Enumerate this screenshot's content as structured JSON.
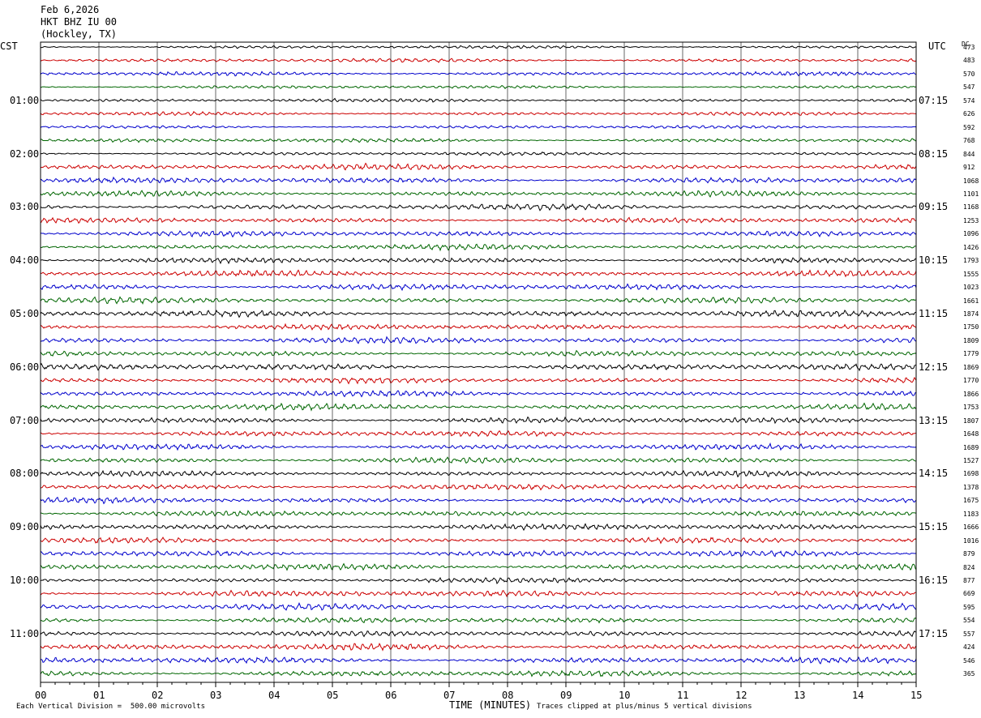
{
  "header": {
    "date": "Feb 6,2026",
    "station": "HKT BHZ IU 00",
    "location": "(Hockley, TX)"
  },
  "left_tz": "CST",
  "right_tz": "UTC",
  "dc_label": "DC",
  "footer": {
    "division": "Each Vertical Division =  500.00 microvolts",
    "xlabel": "TIME (MINUTES)",
    "clip": "Traces clipped at plus/minus 5 vertical divisions"
  },
  "chart_data": {
    "type": "line",
    "title": "",
    "xlabel": "TIME (MINUTES)",
    "ylabel": "",
    "xlim": [
      0,
      15
    ],
    "x_ticks": [
      "00",
      "01",
      "02",
      "03",
      "04",
      "05",
      "06",
      "07",
      "08",
      "09",
      "10",
      "11",
      "12",
      "13",
      "14",
      "15"
    ],
    "left_hour_labels": [
      "01:00",
      "02:00",
      "03:00",
      "04:00",
      "05:00",
      "06:00",
      "07:00",
      "08:00",
      "09:00",
      "10:00",
      "11:00"
    ],
    "right_hour_labels": [
      "07:15",
      "08:15",
      "09:15",
      "10:15",
      "11:15",
      "12:15",
      "13:15",
      "14:15",
      "15:15",
      "16:15",
      "17:15"
    ],
    "trace_colors": [
      "#000000",
      "#cc0000",
      "#0000cc",
      "#006600"
    ],
    "num_traces": 48,
    "grid": true,
    "dc_values": [
      "473",
      "483",
      "570",
      "547",
      "574",
      "626",
      "592",
      "768",
      "844",
      "912",
      "1068",
      "1101",
      "1168",
      "1253",
      "1096",
      "1426",
      "1793",
      "1555",
      "1023",
      "1661",
      "1874",
      "1750",
      "1809",
      "1779",
      "1869",
      "1770",
      "1866",
      "1753",
      "1807",
      "1648",
      "1689",
      "1527",
      "1698",
      "1378",
      "1675",
      "1183",
      "1666",
      "1016",
      "879",
      "824",
      "877",
      "669",
      "595",
      "554",
      "557",
      "424",
      "546",
      "365"
    ]
  }
}
